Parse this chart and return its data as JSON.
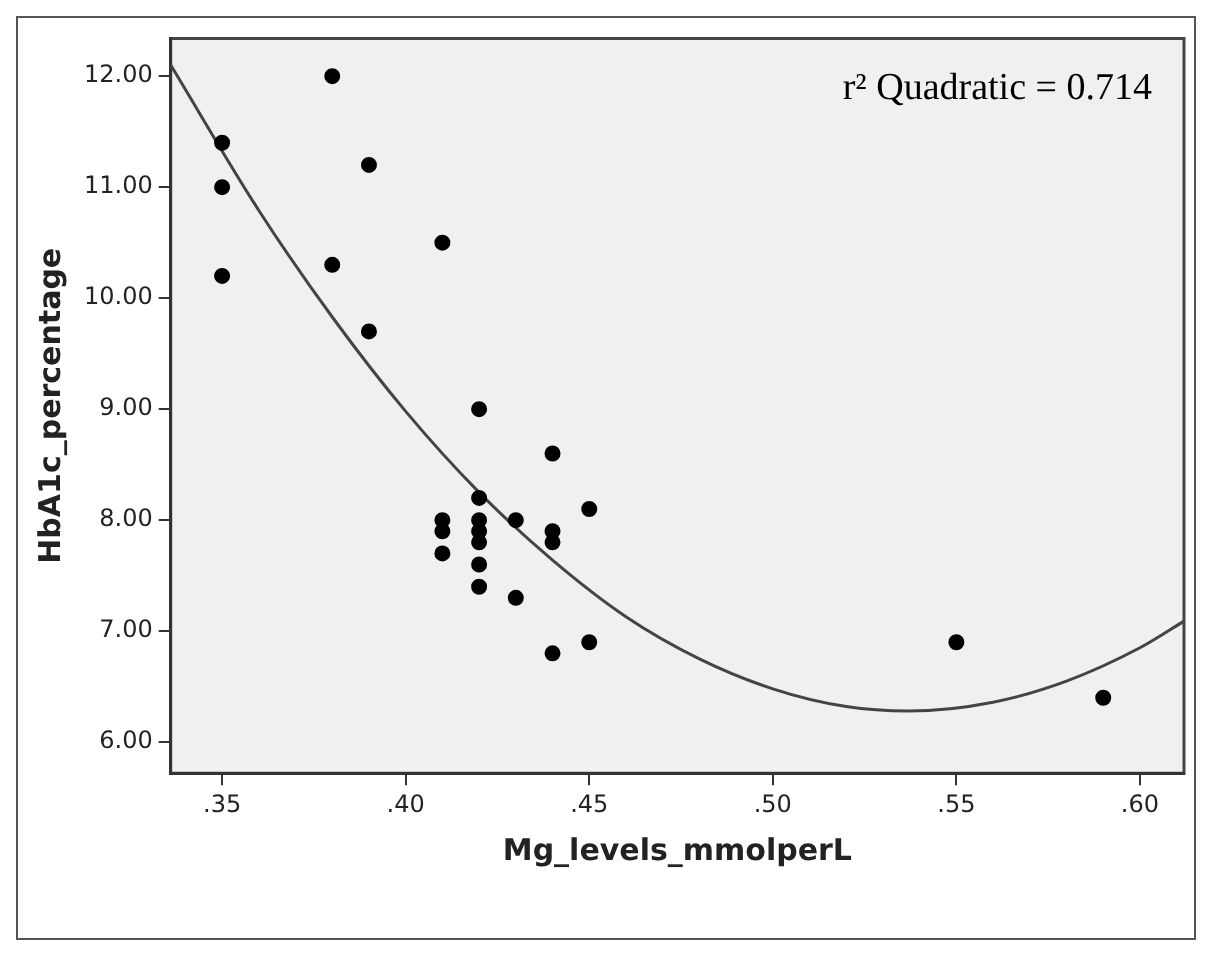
{
  "chart_data": {
    "type": "scatter",
    "xlabel": "Mg_levels_mmolperL",
    "ylabel": "HbA1c_percentage",
    "annotations": [
      "r² Quadratic = 0.714"
    ],
    "series": [
      {
        "marker": "circle",
        "color": "#000000",
        "x": [
          0.35,
          0.35,
          0.35,
          0.38,
          0.38,
          0.39,
          0.39,
          0.41,
          0.41,
          0.41,
          0.41,
          0.42,
          0.42,
          0.42,
          0.42,
          0.42,
          0.42,
          0.42,
          0.43,
          0.43,
          0.44,
          0.44,
          0.44,
          0.44,
          0.45,
          0.45,
          0.55,
          0.59
        ],
        "values": [
          11.4,
          11.0,
          10.2,
          12.0,
          10.3,
          11.2,
          9.7,
          10.5,
          8.0,
          7.9,
          7.7,
          9.0,
          8.2,
          8.0,
          7.9,
          7.8,
          7.6,
          7.4,
          8.0,
          7.3,
          8.6,
          7.9,
          7.8,
          6.8,
          8.1,
          6.9,
          6.9,
          6.4
        ]
      },
      {
        "type": "line",
        "marker": "none",
        "color": "#444444",
        "x": [
          0.336,
          0.36,
          0.38,
          0.4,
          0.42,
          0.44,
          0.46,
          0.48,
          0.5,
          0.52,
          0.537,
          0.56,
          0.58,
          0.6,
          0.612
        ],
        "values": [
          12.1,
          10.79,
          9.83,
          8.98,
          8.25,
          7.64,
          7.13,
          6.75,
          6.48,
          6.32,
          6.28,
          6.36,
          6.55,
          6.85,
          7.09
        ]
      }
    ],
    "xlim": [
      0.336,
      0.612
    ],
    "ylim": [
      5.72,
      12.34
    ],
    "xticks": [
      {
        "value": 0.35,
        "label": ".35"
      },
      {
        "value": 0.4,
        "label": ".40"
      },
      {
        "value": 0.45,
        "label": ".45"
      },
      {
        "value": 0.5,
        "label": ".50"
      },
      {
        "value": 0.55,
        "label": ".55"
      },
      {
        "value": 0.6,
        "label": ".60"
      }
    ],
    "yticks": [
      {
        "value": 6,
        "label": "6.00"
      },
      {
        "value": 7,
        "label": "7.00"
      },
      {
        "value": 8,
        "label": "8.00"
      },
      {
        "value": 9,
        "label": "9.00"
      },
      {
        "value": 10,
        "label": "10.00"
      },
      {
        "value": 11,
        "label": "11.00"
      },
      {
        "value": 12,
        "label": "12.00"
      }
    ],
    "grid": false,
    "legend": false,
    "line_style": "solid"
  }
}
